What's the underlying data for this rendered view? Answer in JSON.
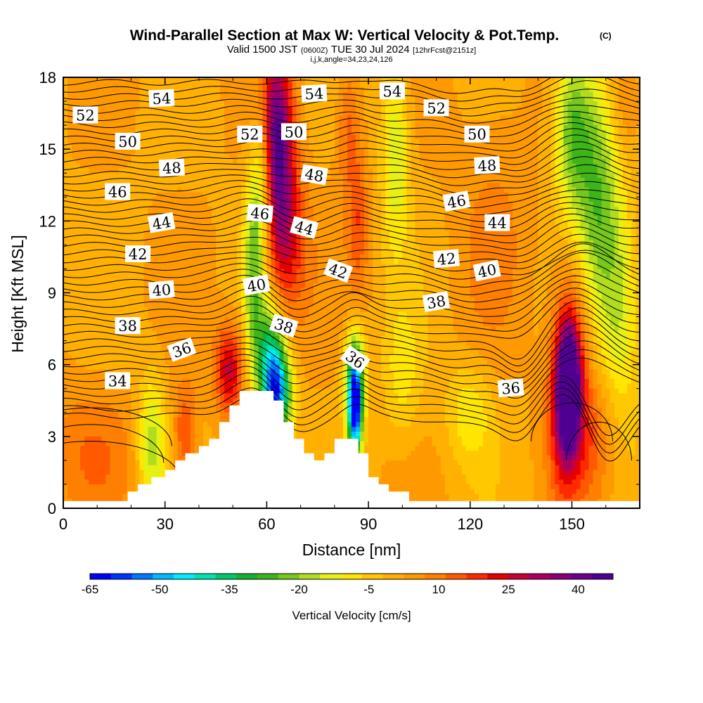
{
  "title": "Wind-Parallel Section at Max W: Vertical Velocity & Pot.Temp.",
  "copyright": "(C)",
  "subtitle": {
    "valid": "Valid 1500 JST",
    "zulu": "(0600Z)",
    "date": "TUE 30 Jul 2024",
    "forecast": "[12hrFcst@2151z]"
  },
  "info_line": "i,j,k,angle=34,23,24,126",
  "colors": {
    "background": "#ffffff",
    "terrain": "#ffffff",
    "contour": "#000000"
  },
  "chart_data": {
    "type": "heatmap",
    "title": "Wind-Parallel Section at Max W: Vertical Velocity & Pot.Temp.",
    "xlabel": "Distance [nm]",
    "ylabel": "Height [Kft MSL]",
    "xlim": [
      0,
      170
    ],
    "ylim": [
      0,
      18
    ],
    "x_ticks": [
      0,
      30,
      60,
      90,
      120,
      150
    ],
    "y_ticks": [
      0,
      3,
      6,
      9,
      12,
      15,
      18
    ],
    "colorbar": {
      "title": "Vertical Velocity [cm/s]",
      "min": -65,
      "max": 47.5,
      "tick_values": [
        -65,
        -50,
        -35,
        -20,
        -5,
        10,
        25,
        40
      ],
      "tick_labels": [
        "-65",
        "-50",
        "-35",
        "-20",
        "-5",
        "10",
        "25",
        "40"
      ],
      "colors": [
        "#0000ff",
        "#0033ff",
        "#0077ff",
        "#00bbff",
        "#00eeff",
        "#00e5b0",
        "#00c86e",
        "#16b035",
        "#3fb41a",
        "#76c81c",
        "#b2dc1e",
        "#e6f014",
        "#ffe600",
        "#ffc800",
        "#ffb000",
        "#ff9900",
        "#ff7f00",
        "#ff5a00",
        "#ff2a00",
        "#e60000",
        "#c8003a",
        "#a80060",
        "#8a0078",
        "#6a008c",
        "#500090"
      ]
    },
    "terrain": [
      [
        0,
        0.3
      ],
      [
        19,
        0.3
      ],
      [
        19,
        0.7
      ],
      [
        22,
        0.7
      ],
      [
        22,
        1
      ],
      [
        26,
        1
      ],
      [
        26,
        1.3
      ],
      [
        30,
        1.3
      ],
      [
        30,
        1.6
      ],
      [
        33,
        1.6
      ],
      [
        33,
        2
      ],
      [
        36,
        2
      ],
      [
        36,
        2.3
      ],
      [
        40,
        2.3
      ],
      [
        40,
        2.6
      ],
      [
        43,
        2.6
      ],
      [
        43,
        2.9
      ],
      [
        46,
        2.9
      ],
      [
        46,
        3.6
      ],
      [
        49,
        3.6
      ],
      [
        49,
        4.3
      ],
      [
        52,
        4.3
      ],
      [
        52,
        4.9
      ],
      [
        62,
        4.9
      ],
      [
        62,
        4.5
      ],
      [
        65,
        4.5
      ],
      [
        65,
        3.6
      ],
      [
        68,
        3.6
      ],
      [
        68,
        2.9
      ],
      [
        71,
        2.9
      ],
      [
        71,
        2.3
      ],
      [
        74,
        2.3
      ],
      [
        74,
        2
      ],
      [
        77,
        2
      ],
      [
        77,
        2.3
      ],
      [
        80,
        2.3
      ],
      [
        80,
        2.9
      ],
      [
        87,
        2.9
      ],
      [
        87,
        2.3
      ],
      [
        90,
        2.3
      ],
      [
        90,
        1.3
      ],
      [
        93,
        1.3
      ],
      [
        93,
        1
      ],
      [
        96,
        1
      ],
      [
        96,
        0.7
      ],
      [
        102,
        0.7
      ],
      [
        102,
        0.3
      ],
      [
        170,
        0.3
      ]
    ],
    "w_features": [
      {
        "x": 149,
        "y": 5,
        "sx": 2.2,
        "sy": 1.7,
        "amp": 52
      },
      {
        "x": 150,
        "y": 6.5,
        "sx": 4,
        "sy": 3,
        "amp": 20
      },
      {
        "x": 147,
        "y": 3.8,
        "sx": 3,
        "sy": 2.2,
        "amp": 15
      },
      {
        "x": 63.5,
        "y": 14.2,
        "sx": 3.2,
        "sy": 3,
        "amp": 32
      },
      {
        "x": 62,
        "y": 16.5,
        "sx": 3,
        "sy": 2,
        "amp": 15
      },
      {
        "x": 67,
        "y": 11,
        "sx": 4,
        "sy": 2.5,
        "amp": 15
      },
      {
        "x": 86,
        "y": 4,
        "sx": 1.5,
        "sy": 1.3,
        "amp": -62
      },
      {
        "x": 86,
        "y": 5.8,
        "sx": 2.2,
        "sy": 1.3,
        "amp": -30
      },
      {
        "x": 63,
        "y": 4.7,
        "sx": 3,
        "sy": 1.3,
        "amp": -50
      },
      {
        "x": 61,
        "y": 6.5,
        "sx": 3,
        "sy": 1.6,
        "amp": -30
      },
      {
        "x": 56,
        "y": 10,
        "sx": 2,
        "sy": 3,
        "amp": -22
      },
      {
        "x": 59,
        "y": 14,
        "sx": 2,
        "sy": 2.5,
        "amp": -18
      },
      {
        "x": 49,
        "y": 5.8,
        "sx": 3,
        "sy": 1.3,
        "amp": 25
      },
      {
        "x": 36,
        "y": 3,
        "sx": 2.5,
        "sy": 1.5,
        "amp": 15
      },
      {
        "x": 26,
        "y": 2.7,
        "sx": 3,
        "sy": 2,
        "amp": -20
      },
      {
        "x": 158,
        "y": 13,
        "sx": 5,
        "sy": 4,
        "amp": -25
      },
      {
        "x": 150,
        "y": 16,
        "sx": 4,
        "sy": 2.5,
        "amp": -25
      },
      {
        "x": 165,
        "y": 8,
        "sx": 4,
        "sy": 3,
        "amp": -15
      },
      {
        "x": 120,
        "y": 4,
        "sx": 5,
        "sy": 1.5,
        "amp": -12
      },
      {
        "x": 100,
        "y": 5.5,
        "sx": 4,
        "sy": 2,
        "amp": -10
      },
      {
        "x": 98,
        "y": 15,
        "sx": 3,
        "sy": 3,
        "amp": -18
      },
      {
        "x": 87,
        "y": 12,
        "sx": 2,
        "sy": 2,
        "amp": 12
      },
      {
        "x": 84,
        "y": 16,
        "sx": 2.5,
        "sy": 2,
        "amp": 12
      },
      {
        "x": 155,
        "y": 3,
        "sx": 5,
        "sy": 2,
        "amp": 10
      },
      {
        "x": 8,
        "y": 2.5,
        "sx": 10,
        "sy": 2,
        "amp": 8
      },
      {
        "x": 165,
        "y": 17,
        "sx": 4,
        "sy": 2,
        "amp": 10
      },
      {
        "x": 127,
        "y": 13,
        "sx": 8,
        "sy": 4,
        "amp": 5
      }
    ],
    "theta_contour_levels": [
      34,
      36,
      38,
      40,
      42,
      44,
      46,
      48,
      50,
      52,
      54
    ],
    "contour_labels": [
      {
        "text": "54",
        "x": 29,
        "y": 17.1,
        "angle": -3
      },
      {
        "text": "54",
        "x": 74,
        "y": 17.3,
        "angle": -3
      },
      {
        "text": "54",
        "x": 97,
        "y": 17.4,
        "angle": 0
      },
      {
        "text": "52",
        "x": 6.5,
        "y": 16.4,
        "angle": 0
      },
      {
        "text": "52",
        "x": 55,
        "y": 15.6,
        "angle": 0
      },
      {
        "text": "52",
        "x": 110,
        "y": 16.7,
        "angle": 0
      },
      {
        "text": "50",
        "x": 19,
        "y": 15.3,
        "angle": 0
      },
      {
        "text": "50",
        "x": 68,
        "y": 15.7,
        "angle": 0
      },
      {
        "text": "50",
        "x": 122,
        "y": 15.6,
        "angle": 0
      },
      {
        "text": "48",
        "x": 32,
        "y": 14.2,
        "angle": -3
      },
      {
        "text": "48",
        "x": 74,
        "y": 13.9,
        "angle": 10
      },
      {
        "text": "48",
        "x": 125,
        "y": 14.3,
        "angle": -3
      },
      {
        "text": "46",
        "x": 16,
        "y": 13.2,
        "angle": 0
      },
      {
        "text": "46",
        "x": 58,
        "y": 12.3,
        "angle": 5
      },
      {
        "text": "46",
        "x": 116,
        "y": 12.8,
        "angle": -10
      },
      {
        "text": "44",
        "x": 29,
        "y": 11.9,
        "angle": -10
      },
      {
        "text": "44",
        "x": 71,
        "y": 11.7,
        "angle": 15
      },
      {
        "text": "44",
        "x": 128,
        "y": 11.9,
        "angle": 0
      },
      {
        "text": "42",
        "x": 22,
        "y": 10.6,
        "angle": 0
      },
      {
        "text": "42",
        "x": 81,
        "y": 9.9,
        "angle": 20
      },
      {
        "text": "42",
        "x": 113,
        "y": 10.4,
        "angle": -5
      },
      {
        "text": "40",
        "x": 29,
        "y": 9.1,
        "angle": -5
      },
      {
        "text": "40",
        "x": 57,
        "y": 9.3,
        "angle": -10
      },
      {
        "text": "40",
        "x": 125,
        "y": 9.9,
        "angle": -12
      },
      {
        "text": "38",
        "x": 19,
        "y": 7.6,
        "angle": 0
      },
      {
        "text": "38",
        "x": 65,
        "y": 7.6,
        "angle": 18
      },
      {
        "text": "38",
        "x": 110,
        "y": 8.6,
        "angle": -10
      },
      {
        "text": "36",
        "x": 35,
        "y": 6.6,
        "angle": -20
      },
      {
        "text": "36",
        "x": 86,
        "y": 6.2,
        "angle": 35
      },
      {
        "text": "36",
        "x": 132,
        "y": 5,
        "angle": -5
      },
      {
        "text": "34",
        "x": 16,
        "y": 5.3,
        "angle": 0
      }
    ]
  }
}
